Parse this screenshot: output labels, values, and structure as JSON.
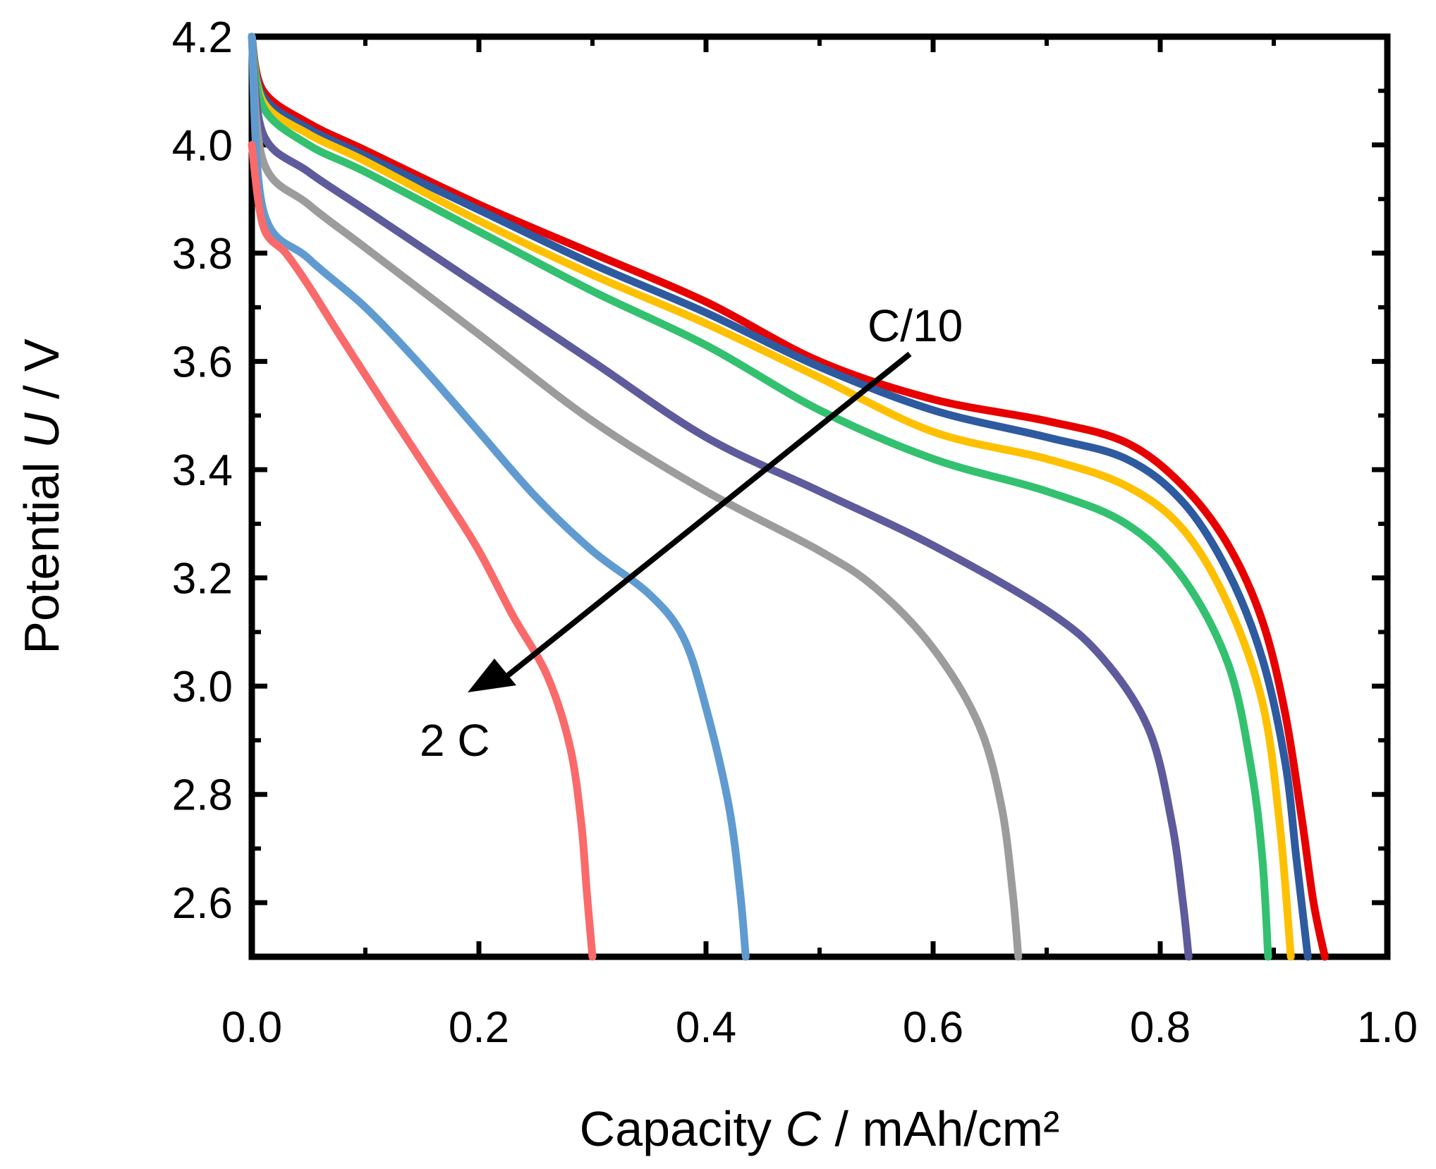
{
  "chart_data": {
    "type": "line",
    "title": "",
    "xlabel": {
      "prefix": "Capacity ",
      "symbol": "C",
      "suffix": " / mAh/cm²"
    },
    "ylabel": {
      "prefix": "Potential ",
      "symbol": "U",
      "suffix": " / V"
    },
    "xlim": [
      0.0,
      1.0
    ],
    "ylim": [
      2.5,
      4.2
    ],
    "x_ticks": [
      "0.0",
      "0.2",
      "0.4",
      "0.6",
      "0.8",
      "1.0"
    ],
    "y_ticks": [
      "2.6",
      "2.8",
      "3.0",
      "3.2",
      "3.4",
      "3.6",
      "3.8",
      "4.0",
      "4.2"
    ],
    "grid": false,
    "legend": "none",
    "series": [
      {
        "color": "#e60000",
        "points": [
          [
            0.0,
            4.2
          ],
          [
            0.01,
            4.1
          ],
          [
            0.05,
            4.04
          ],
          [
            0.1,
            3.99
          ],
          [
            0.2,
            3.89
          ],
          [
            0.3,
            3.8
          ],
          [
            0.4,
            3.71
          ],
          [
            0.5,
            3.6
          ],
          [
            0.6,
            3.53
          ],
          [
            0.7,
            3.49
          ],
          [
            0.77,
            3.45
          ],
          [
            0.82,
            3.37
          ],
          [
            0.86,
            3.26
          ],
          [
            0.89,
            3.12
          ],
          [
            0.91,
            2.95
          ],
          [
            0.925,
            2.75
          ],
          [
            0.935,
            2.6
          ],
          [
            0.945,
            2.5
          ]
        ]
      },
      {
        "color": "#2e5aa0",
        "points": [
          [
            0.0,
            4.2
          ],
          [
            0.01,
            4.09
          ],
          [
            0.05,
            4.03
          ],
          [
            0.1,
            3.98
          ],
          [
            0.2,
            3.88
          ],
          [
            0.3,
            3.78
          ],
          [
            0.4,
            3.69
          ],
          [
            0.5,
            3.59
          ],
          [
            0.6,
            3.51
          ],
          [
            0.7,
            3.46
          ],
          [
            0.77,
            3.42
          ],
          [
            0.82,
            3.34
          ],
          [
            0.86,
            3.21
          ],
          [
            0.89,
            3.05
          ],
          [
            0.91,
            2.86
          ],
          [
            0.92,
            2.68
          ],
          [
            0.93,
            2.5
          ]
        ]
      },
      {
        "color": "#ffc000",
        "points": [
          [
            0.0,
            4.2
          ],
          [
            0.01,
            4.08
          ],
          [
            0.05,
            4.02
          ],
          [
            0.1,
            3.97
          ],
          [
            0.2,
            3.86
          ],
          [
            0.3,
            3.76
          ],
          [
            0.4,
            3.67
          ],
          [
            0.5,
            3.57
          ],
          [
            0.6,
            3.47
          ],
          [
            0.7,
            3.42
          ],
          [
            0.77,
            3.37
          ],
          [
            0.82,
            3.29
          ],
          [
            0.86,
            3.15
          ],
          [
            0.89,
            2.97
          ],
          [
            0.905,
            2.75
          ],
          [
            0.915,
            2.5
          ]
        ]
      },
      {
        "color": "#33c170",
        "points": [
          [
            0.0,
            4.2
          ],
          [
            0.01,
            4.07
          ],
          [
            0.05,
            4.0
          ],
          [
            0.1,
            3.95
          ],
          [
            0.2,
            3.84
          ],
          [
            0.3,
            3.73
          ],
          [
            0.4,
            3.63
          ],
          [
            0.5,
            3.51
          ],
          [
            0.6,
            3.42
          ],
          [
            0.7,
            3.36
          ],
          [
            0.77,
            3.3
          ],
          [
            0.82,
            3.2
          ],
          [
            0.86,
            3.04
          ],
          [
            0.88,
            2.85
          ],
          [
            0.89,
            2.68
          ],
          [
            0.895,
            2.5
          ]
        ]
      },
      {
        "color": "#5e5b9c",
        "points": [
          [
            0.0,
            4.2
          ],
          [
            0.01,
            4.02
          ],
          [
            0.05,
            3.95
          ],
          [
            0.1,
            3.88
          ],
          [
            0.2,
            3.74
          ],
          [
            0.3,
            3.6
          ],
          [
            0.4,
            3.46
          ],
          [
            0.5,
            3.36
          ],
          [
            0.6,
            3.26
          ],
          [
            0.7,
            3.14
          ],
          [
            0.75,
            3.05
          ],
          [
            0.79,
            2.92
          ],
          [
            0.81,
            2.75
          ],
          [
            0.82,
            2.6
          ],
          [
            0.825,
            2.5
          ]
        ]
      },
      {
        "color": "#9c9c9c",
        "points": [
          [
            0.0,
            4.2
          ],
          [
            0.01,
            3.97
          ],
          [
            0.05,
            3.89
          ],
          [
            0.1,
            3.81
          ],
          [
            0.2,
            3.65
          ],
          [
            0.3,
            3.49
          ],
          [
            0.4,
            3.36
          ],
          [
            0.5,
            3.25
          ],
          [
            0.55,
            3.18
          ],
          [
            0.6,
            3.07
          ],
          [
            0.64,
            2.93
          ],
          [
            0.66,
            2.78
          ],
          [
            0.67,
            2.62
          ],
          [
            0.675,
            2.5
          ]
        ]
      },
      {
        "color": "#5f9bd0",
        "points": [
          [
            0.0,
            4.2
          ],
          [
            0.01,
            3.88
          ],
          [
            0.05,
            3.79
          ],
          [
            0.1,
            3.7
          ],
          [
            0.15,
            3.59
          ],
          [
            0.2,
            3.47
          ],
          [
            0.25,
            3.35
          ],
          [
            0.3,
            3.25
          ],
          [
            0.35,
            3.17
          ],
          [
            0.38,
            3.09
          ],
          [
            0.4,
            2.96
          ],
          [
            0.42,
            2.78
          ],
          [
            0.43,
            2.62
          ],
          [
            0.435,
            2.5
          ]
        ]
      },
      {
        "color": "#fa6a6a",
        "points": [
          [
            0.0,
            4.0
          ],
          [
            0.01,
            3.85
          ],
          [
            0.03,
            3.8
          ],
          [
            0.05,
            3.74
          ],
          [
            0.08,
            3.64
          ],
          [
            0.12,
            3.51
          ],
          [
            0.17,
            3.35
          ],
          [
            0.2,
            3.25
          ],
          [
            0.23,
            3.13
          ],
          [
            0.26,
            3.02
          ],
          [
            0.28,
            2.89
          ],
          [
            0.29,
            2.75
          ],
          [
            0.295,
            2.62
          ],
          [
            0.3,
            2.5
          ]
        ]
      }
    ],
    "annotations": {
      "start_label": "C/10",
      "end_label": "2 C"
    }
  }
}
